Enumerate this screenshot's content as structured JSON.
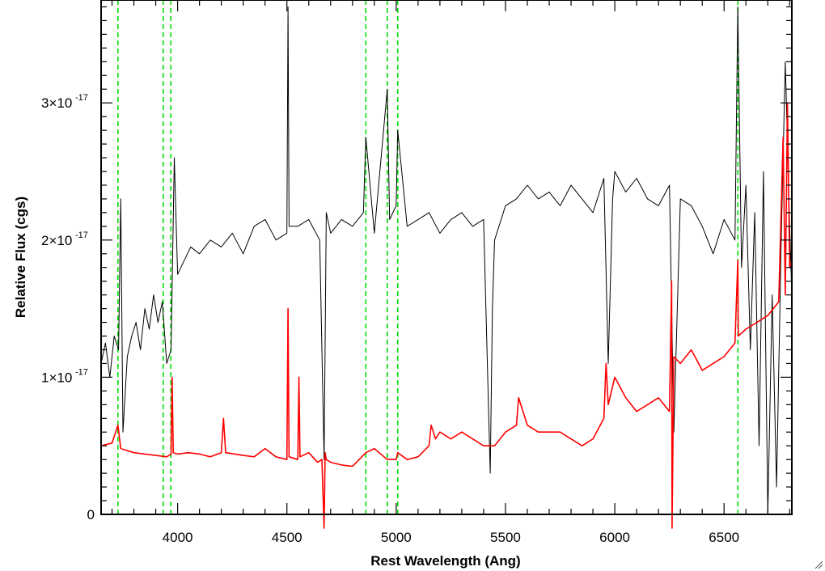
{
  "chart_data": {
    "type": "line",
    "title": "",
    "xlabel": "Rest Wavelength (Ang)",
    "ylabel": "Relative Flux (cgs)",
    "xlim": [
      3650,
      6810
    ],
    "ylim": [
      0,
      3.75e-17
    ],
    "x_ticks": [
      {
        "value": 4000,
        "label": "4000"
      },
      {
        "value": 4500,
        "label": "4500"
      },
      {
        "value": 5000,
        "label": "5000"
      },
      {
        "value": 5500,
        "label": "5500"
      },
      {
        "value": 6000,
        "label": "6000"
      },
      {
        "value": 6500,
        "label": "6500"
      }
    ],
    "y_ticks": [
      {
        "value": 0,
        "label": "0",
        "mantissa": "",
        "exponent": ""
      },
      {
        "value": 1e-17,
        "label": "1×10^-17",
        "mantissa": "1×10",
        "exponent": "-17"
      },
      {
        "value": 2e-17,
        "label": "2×10^-17",
        "mantissa": "2×10",
        "exponent": "-17"
      },
      {
        "value": 3e-17,
        "label": "3×10^-17",
        "mantissa": "3×10",
        "exponent": "-17"
      }
    ],
    "grid": false,
    "legend": "none",
    "reference_lines": {
      "orientation": "vertical",
      "style": "dashed",
      "color": "#00dd00",
      "x": [
        3727,
        3934,
        3969,
        4861,
        4959,
        5007,
        6563
      ]
    },
    "series": [
      {
        "color": "#000000",
        "x": [
          3650,
          3670,
          3690,
          3710,
          3730,
          3740,
          3750,
          3770,
          3790,
          3810,
          3830,
          3850,
          3870,
          3890,
          3910,
          3930,
          3950,
          3970,
          3985,
          4000,
          4030,
          4060,
          4100,
          4150,
          4200,
          4250,
          4300,
          4350,
          4400,
          4450,
          4500,
          4505,
          4510,
          4550,
          4600,
          4650,
          4670,
          4680,
          4700,
          4750,
          4800,
          4850,
          4861,
          4900,
          4959,
          4970,
          5000,
          5007,
          5050,
          5100,
          5150,
          5200,
          5250,
          5300,
          5350,
          5400,
          5430,
          5440,
          5450,
          5500,
          5550,
          5600,
          5650,
          5700,
          5750,
          5800,
          5850,
          5900,
          5950,
          5970,
          5990,
          6000,
          6050,
          6100,
          6150,
          6200,
          6250,
          6270,
          6300,
          6350,
          6400,
          6450,
          6500,
          6550,
          6563,
          6580,
          6600,
          6620,
          6640,
          6660,
          6680,
          6700,
          6720,
          6740,
          6760,
          6780,
          6800,
          6810
        ],
        "y": [
          1.1e-17,
          1.25e-17,
          1e-17,
          1.3e-17,
          1.2e-17,
          2.3e-17,
          6e-18,
          1.15e-17,
          1.3e-17,
          1.4e-17,
          1.2e-17,
          1.5e-17,
          1.35e-17,
          1.6e-17,
          1.4e-17,
          1.55e-17,
          1.1e-17,
          1.2e-17,
          2.6e-17,
          1.75e-17,
          1.85e-17,
          1.95e-17,
          1.9e-17,
          2e-17,
          1.95e-17,
          2.05e-17,
          1.9e-17,
          2.1e-17,
          2.15e-17,
          2e-17,
          2.05e-17,
          3.7e-17,
          2.1e-17,
          2.1e-17,
          2.15e-17,
          2e-17,
          4e-18,
          2.2e-17,
          2.05e-17,
          2.15e-17,
          2.1e-17,
          2.2e-17,
          2.75e-17,
          2.05e-17,
          3.1e-17,
          2.15e-17,
          2.25e-17,
          2.8e-17,
          2.1e-17,
          2.15e-17,
          2.2e-17,
          2.05e-17,
          2.15e-17,
          2.2e-17,
          2.1e-17,
          2.15e-17,
          3e-18,
          1.5e-17,
          2e-17,
          2.25e-17,
          2.3e-17,
          2.4e-17,
          2.3e-17,
          2.35e-17,
          2.25e-17,
          2.4e-17,
          2.3e-17,
          2.2e-17,
          2.45e-17,
          1.1e-17,
          2.3e-17,
          2.5e-17,
          2.35e-17,
          2.45e-17,
          2.3e-17,
          2.25e-17,
          2.4e-17,
          6e-18,
          2.3e-17,
          2.25e-17,
          2.1e-17,
          1.9e-17,
          2.15e-17,
          2e-17,
          3.7e-17,
          1.8e-17,
          2.4e-17,
          1.2e-17,
          2.2e-17,
          5e-18,
          2.5e-17,
          0.0,
          1.6e-17,
          2e-18,
          1.9e-17,
          3.3e-17,
          2.1e-17,
          1.6e-17
        ]
      },
      {
        "color": "#ff0000",
        "x": [
          3650,
          3700,
          3727,
          3740,
          3800,
          3850,
          3900,
          3950,
          3970,
          3975,
          3980,
          4000,
          4050,
          4100,
          4150,
          4200,
          4210,
          4220,
          4300,
          4350,
          4400,
          4450,
          4500,
          4505,
          4510,
          4550,
          4555,
          4560,
          4600,
          4640,
          4660,
          4670,
          4675,
          4680,
          4700,
          4750,
          4800,
          4861,
          4900,
          4959,
          5000,
          5007,
          5050,
          5100,
          5150,
          5160,
          5180,
          5200,
          5250,
          5300,
          5350,
          5400,
          5450,
          5500,
          5550,
          5560,
          5600,
          5650,
          5700,
          5750,
          5800,
          5850,
          5900,
          5950,
          5960,
          5970,
          6000,
          6050,
          6100,
          6150,
          6200,
          6250,
          6260,
          6262,
          6270,
          6300,
          6350,
          6400,
          6450,
          6500,
          6550,
          6563,
          6565,
          6600,
          6650,
          6700,
          6750,
          6770,
          6780,
          6790,
          6800,
          6810
        ],
        "y": [
          5e-18,
          5.2e-18,
          6.5e-18,
          4.8e-18,
          4.5e-18,
          4.4e-18,
          4.3e-18,
          4.2e-18,
          4.4e-18,
          1e-17,
          4.5e-18,
          4.4e-18,
          4.5e-18,
          4.4e-18,
          4.2e-18,
          4.5e-18,
          7e-18,
          4.5e-18,
          4.3e-18,
          4.2e-18,
          4.8e-18,
          4.2e-18,
          4e-18,
          1.5e-17,
          4.2e-18,
          4e-18,
          1e-17,
          4.2e-18,
          4.5e-18,
          3.8e-18,
          4e-18,
          -1e-18,
          4.5e-18,
          4e-18,
          3.8e-18,
          3.6e-18,
          3.5e-18,
          4.5e-18,
          4.8e-18,
          4e-18,
          4e-18,
          4.5e-18,
          4e-18,
          4.2e-18,
          5e-18,
          6.5e-18,
          5.5e-18,
          6e-18,
          5.5e-18,
          6e-18,
          5.5e-18,
          5e-18,
          5e-18,
          6e-18,
          6.5e-18,
          8.5e-18,
          6.5e-18,
          6e-18,
          6e-18,
          6e-18,
          5.5e-18,
          5e-18,
          5.5e-18,
          7e-18,
          1.1e-17,
          8e-18,
          1e-17,
          8.5e-18,
          7.5e-18,
          8e-18,
          8.5e-18,
          7.5e-18,
          1.7e-17,
          -1e-18,
          1.15e-17,
          1.1e-17,
          1.2e-17,
          1.05e-17,
          1.1e-17,
          1.15e-17,
          1.25e-17,
          1.85e-17,
          1.3e-17,
          1.35e-17,
          1.4e-17,
          1.45e-17,
          1.55e-17,
          2.75e-17,
          1.6e-17,
          3e-17,
          1.8e-17,
          1.85e-17
        ]
      }
    ]
  }
}
